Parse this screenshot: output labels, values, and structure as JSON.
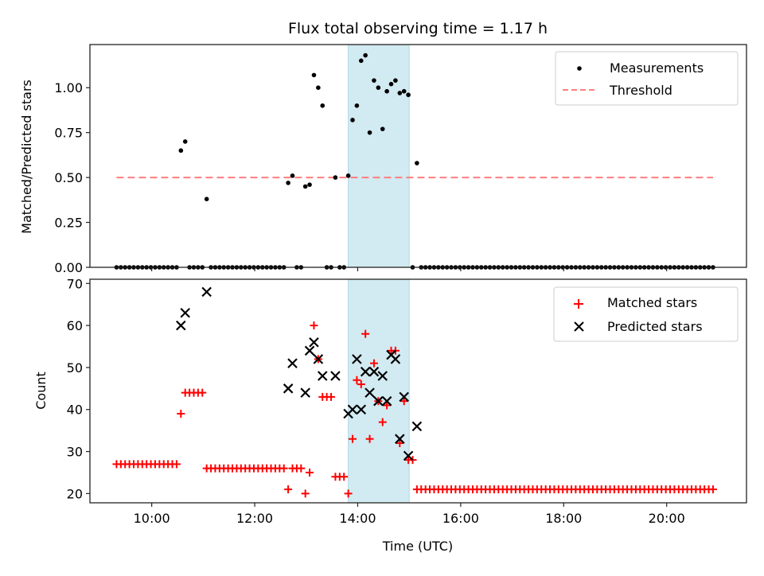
{
  "chart_data": {
    "title": "Flux total observing time = 1.17 h",
    "type": "scatter",
    "shared_x": {
      "label": "Time (UTC)",
      "range_hours": [
        8.8,
        21.55
      ],
      "ticks": [
        "10:00",
        "12:00",
        "14:00",
        "16:00",
        "18:00",
        "20:00"
      ],
      "tick_hours": [
        10,
        12,
        14,
        16,
        18,
        20
      ],
      "sample_start": "09:19",
      "sample_step_minutes": 5
    },
    "shaded_span": {
      "start": "13:49",
      "end": "15:00",
      "color": "#add8e6"
    },
    "panels": [
      {
        "name": "ratio",
        "ylabel": "Matched/Predicted stars",
        "ylim": [
          0,
          1.24
        ],
        "yticks": [
          "0.00",
          "0.25",
          "0.50",
          "0.75",
          "1.00"
        ],
        "ytick_values": [
          0,
          0.25,
          0.5,
          0.75,
          1.0
        ],
        "legend": {
          "placement": "top-right",
          "entries": [
            "Measurements",
            "Threshold"
          ]
        },
        "threshold": {
          "label": "Threshold",
          "value": 0.5,
          "color": "#ff7f7f"
        },
        "measurements_label": "Measurements"
      },
      {
        "name": "counts",
        "ylabel": "Count",
        "ylim": [
          17.8,
          71
        ],
        "yticks": [
          "20",
          "30",
          "40",
          "50",
          "60",
          "70"
        ],
        "ytick_values": [
          20,
          30,
          40,
          50,
          60,
          70
        ],
        "legend": {
          "placement": "top-right",
          "entries": [
            "Matched stars",
            "Predicted stars"
          ]
        },
        "matched_color": "#ff0000",
        "predicted_color": "#000000"
      }
    ],
    "series": {
      "matched": [
        27,
        27,
        27,
        27,
        27,
        27,
        27,
        27,
        27,
        27,
        27,
        27,
        27,
        27,
        27,
        39,
        44,
        44,
        44,
        44,
        44,
        26,
        26,
        26,
        26,
        26,
        26,
        26,
        26,
        26,
        26,
        26,
        26,
        26,
        26,
        26,
        26,
        26,
        26,
        26,
        21,
        26,
        26,
        26,
        20,
        25,
        60,
        52,
        43,
        43,
        43,
        24,
        24,
        24,
        20,
        33,
        47,
        46,
        58,
        33,
        51,
        42,
        37,
        41,
        54,
        54,
        32,
        42,
        28,
        28,
        21,
        21,
        21,
        21,
        21,
        21,
        21,
        21,
        21,
        21,
        21,
        21,
        21,
        21,
        21,
        21,
        21,
        21,
        21,
        21,
        21,
        21,
        21,
        21,
        21,
        21,
        21,
        21,
        21,
        21,
        21,
        21,
        21,
        21,
        21,
        21,
        21,
        21,
        21,
        21,
        21,
        21,
        21,
        21,
        21,
        21,
        21,
        21,
        21,
        21,
        21,
        21,
        21,
        21,
        21,
        21,
        21,
        21,
        21,
        21,
        21,
        21,
        21,
        21,
        21,
        21,
        21,
        21,
        21,
        21
      ],
      "predicted": [
        null,
        null,
        null,
        null,
        null,
        null,
        null,
        null,
        null,
        null,
        null,
        null,
        null,
        null,
        null,
        60,
        63,
        null,
        null,
        null,
        null,
        68,
        null,
        null,
        null,
        null,
        null,
        null,
        null,
        null,
        null,
        null,
        null,
        null,
        null,
        null,
        null,
        null,
        null,
        null,
        45,
        51,
        null,
        null,
        44,
        54,
        56,
        52,
        48,
        null,
        null,
        48,
        null,
        null,
        39,
        40,
        52,
        40,
        49,
        44,
        49,
        42,
        48,
        42,
        53,
        52,
        33,
        43,
        29,
        null,
        36,
        null,
        null,
        null,
        null,
        null,
        null,
        null,
        null,
        null,
        null,
        null,
        null,
        null,
        null,
        null,
        null,
        null,
        null,
        null,
        null,
        null,
        null,
        null,
        null,
        null,
        null,
        null,
        null,
        null,
        null,
        null,
        null,
        null,
        null,
        null,
        null,
        null,
        null,
        null,
        null,
        null,
        null,
        null,
        null,
        null,
        null,
        null,
        null,
        null,
        null,
        null,
        null,
        null,
        null,
        null,
        null,
        null,
        null,
        null,
        null,
        null,
        null,
        null,
        null,
        null,
        null,
        null,
        null,
        null
      ],
      "ratio_nonzero": {
        "15": 0.65,
        "16": 0.7,
        "21": 0.38,
        "40": 0.47,
        "41": 0.51,
        "44": 0.45,
        "45": 0.46,
        "46": 1.07,
        "47": 1.0,
        "48": 0.9,
        "51": 0.5,
        "54": 0.51,
        "55": 0.82,
        "56": 0.9,
        "57": 1.15,
        "58": 1.18,
        "59": 0.75,
        "60": 1.04,
        "61": 1.0,
        "62": 0.77,
        "63": 0.98,
        "64": 1.02,
        "65": 1.04,
        "66": 0.97,
        "67": 0.98,
        "68": 0.96,
        "70": 0.58
      }
    }
  }
}
